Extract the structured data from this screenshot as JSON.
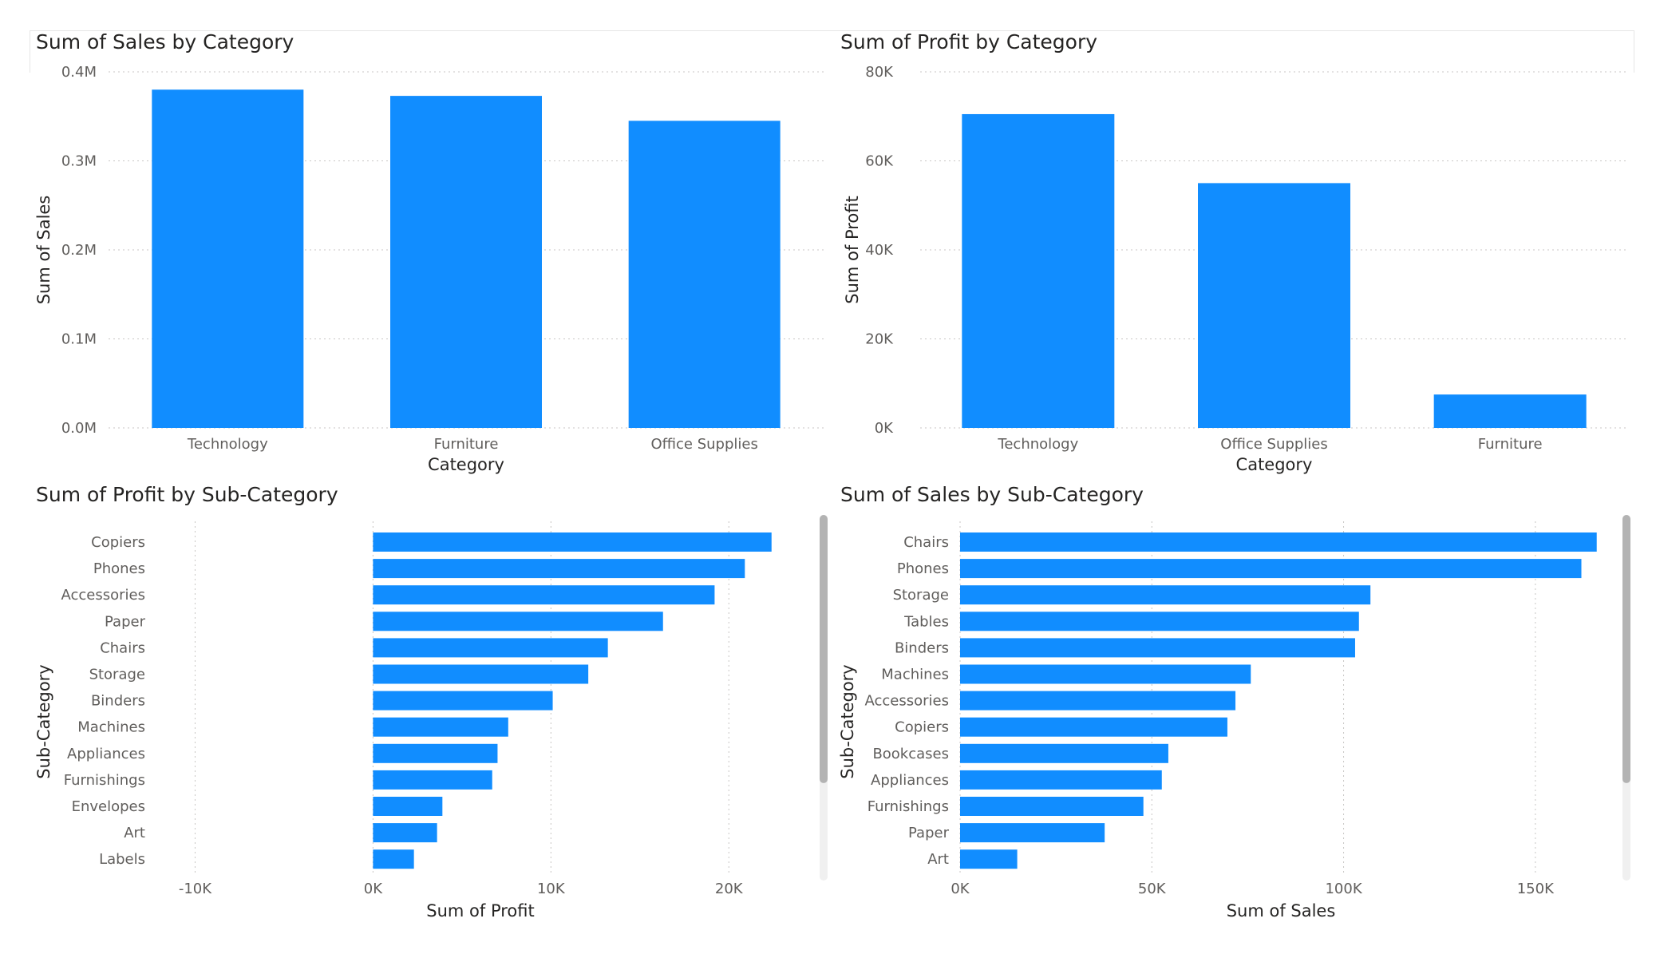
{
  "colors": {
    "bar": "#118DFF",
    "grid": "#c8c6c4",
    "text": "#605e5c",
    "title": "#252423",
    "scroll_thumb": "#b3b3b3",
    "scroll_track": "#f0f0f0"
  },
  "chart_data": [
    {
      "id": "sales-by-category",
      "type": "bar",
      "title": "Sum of Sales by Category",
      "xlabel": "Category",
      "ylabel": "Sum of Sales",
      "categories": [
        "Technology",
        "Furniture",
        "Office Supplies"
      ],
      "values": [
        380000,
        373000,
        345000
      ],
      "ylim": [
        0,
        400000
      ],
      "yticks": [
        0,
        100000,
        200000,
        300000,
        400000
      ],
      "ytick_labels": [
        "0.0M",
        "0.1M",
        "0.2M",
        "0.3M",
        "0.4M"
      ],
      "grid": true
    },
    {
      "id": "profit-by-category",
      "type": "bar",
      "title": "Sum of Profit by Category",
      "xlabel": "Category",
      "ylabel": "Sum of Profit",
      "categories": [
        "Technology",
        "Office Supplies",
        "Furniture"
      ],
      "values": [
        70500,
        55000,
        7500
      ],
      "ylim": [
        0,
        80000
      ],
      "yticks": [
        0,
        20000,
        40000,
        60000,
        80000
      ],
      "ytick_labels": [
        "0K",
        "20K",
        "40K",
        "60K",
        "80K"
      ],
      "grid": true
    },
    {
      "id": "profit-by-subcategory",
      "type": "bar",
      "orientation": "horizontal",
      "title": "Sum of Profit by Sub-Category",
      "xlabel": "Sum of Profit",
      "ylabel": "Sub-Category",
      "categories": [
        "Copiers",
        "Phones",
        "Accessories",
        "Paper",
        "Chairs",
        "Storage",
        "Binders",
        "Machines",
        "Appliances",
        "Furnishings",
        "Envelopes",
        "Art",
        "Labels"
      ],
      "values": [
        22400,
        20900,
        19200,
        16300,
        13200,
        12100,
        10100,
        7600,
        7000,
        6700,
        3900,
        3600,
        2300
      ],
      "xlim": [
        -15000,
        26000
      ],
      "xticks": [
        -10000,
        0,
        10000,
        20000
      ],
      "xtick_labels": [
        "-10K",
        "0K",
        "10K",
        "20K"
      ],
      "grid": true
    },
    {
      "id": "sales-by-subcategory",
      "type": "bar",
      "orientation": "horizontal",
      "title": "Sum of Sales by Sub-Category",
      "xlabel": "Sum of Sales",
      "ylabel": "Sub-Category",
      "categories": [
        "Chairs",
        "Phones",
        "Storage",
        "Tables",
        "Binders",
        "Machines",
        "Accessories",
        "Copiers",
        "Bookcases",
        "Appliances",
        "Furnishings",
        "Paper",
        "Art"
      ],
      "values": [
        166000,
        162000,
        107000,
        104000,
        103000,
        75800,
        71800,
        69700,
        54300,
        52600,
        47800,
        37700,
        14900
      ],
      "xlim": [
        0,
        180000
      ],
      "xticks": [
        0,
        50000,
        100000,
        150000
      ],
      "xtick_labels": [
        "0K",
        "50K",
        "100K",
        "150K"
      ],
      "grid": true
    }
  ]
}
